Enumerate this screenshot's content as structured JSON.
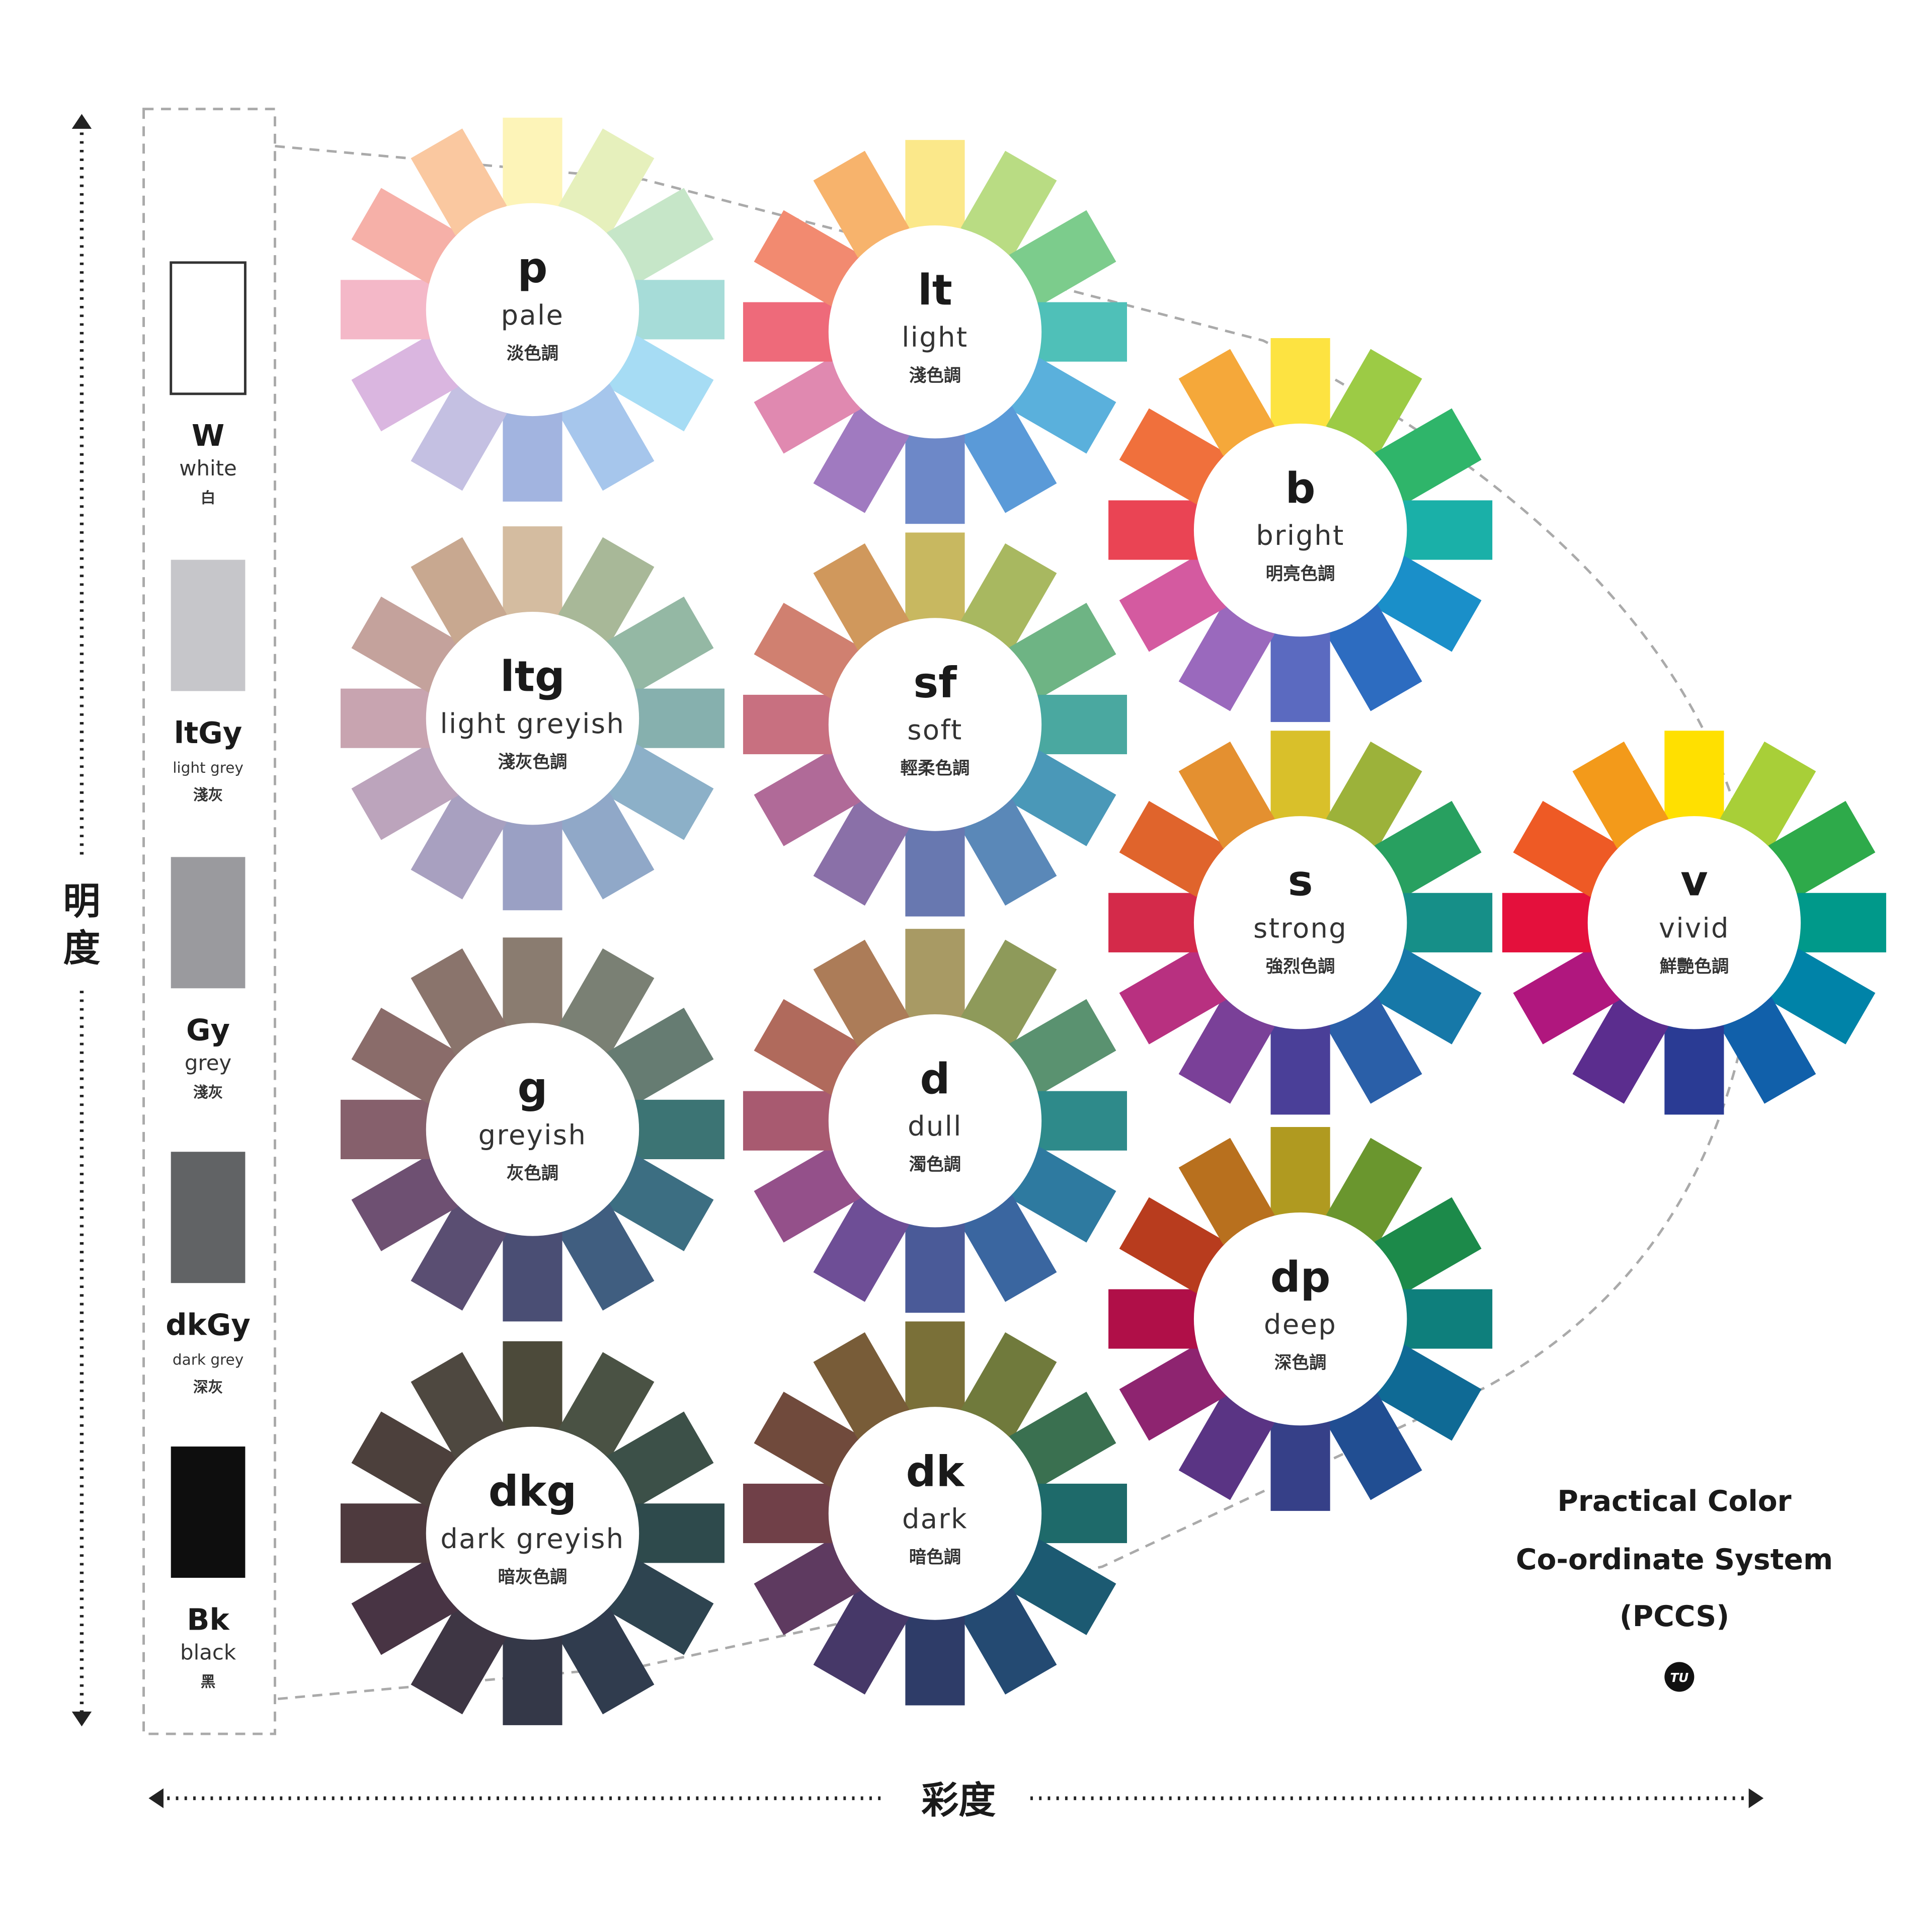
{
  "axes": {
    "vertical_label": "明度",
    "horizontal_label": "彩度"
  },
  "title": {
    "line1": "Practical Color",
    "line2": "Co-ordinate System",
    "line3": "(PCCS)",
    "logo_text": "TU"
  },
  "greys": [
    {
      "abbr": "W",
      "name": "white",
      "zh": "白",
      "color": "#ffffff"
    },
    {
      "abbr": "ltGy",
      "name": "light grey",
      "zh": "淺灰",
      "color": "#c6c6ca"
    },
    {
      "abbr": "Gy",
      "name": "grey",
      "zh": "淺灰",
      "color": "#9a9a9e"
    },
    {
      "abbr": "dkGy",
      "name": "dark grey",
      "zh": "深灰",
      "color": "#616365"
    },
    {
      "abbr": "Bk",
      "name": "black",
      "zh": "黑",
      "color": "#0e0e0e"
    }
  ],
  "tones": [
    {
      "abbr": "p",
      "name": "pale",
      "zh": "淡色調",
      "colors": [
        "#fdf4b8",
        "#e6f0bc",
        "#c6e6c8",
        "#a6dcd8",
        "#a6dcf4",
        "#a6c6ec",
        "#a2b4e0",
        "#c4c0e2",
        "#dab6e0",
        "#f4b8c8",
        "#f6b0a8",
        "#fac8a0"
      ]
    },
    {
      "abbr": "lt",
      "name": "light",
      "zh": "淺色調",
      "colors": [
        "#fbe88a",
        "#b9dc83",
        "#7ccc8c",
        "#4fc0b8",
        "#5ab0dc",
        "#5a9ad8",
        "#6d88c8",
        "#a07ac0",
        "#e089b0",
        "#ee6a7a",
        "#f28a70",
        "#f7b36c"
      ]
    },
    {
      "abbr": "b",
      "name": "bright",
      "zh": "明亮色調",
      "colors": [
        "#fde341",
        "#9ccb45",
        "#2fb56a",
        "#1ab0a8",
        "#1a8fc9",
        "#2d6cc0",
        "#5b6ac0",
        "#9a69bd",
        "#d45aa0",
        "#ea4454",
        "#f0703c",
        "#f5a83a"
      ]
    },
    {
      "abbr": "ltg",
      "name": "light greyish",
      "zh": "淺灰色調",
      "colors": [
        "#d4bca0",
        "#a8b898",
        "#94b8a4",
        "#86b0ae",
        "#8cb0c8",
        "#90a8c8",
        "#9aa0c4",
        "#a8a0c0",
        "#bca4bc",
        "#c8a4b0",
        "#c4a29c",
        "#c8a890"
      ]
    },
    {
      "abbr": "sf",
      "name": "soft",
      "zh": "輕柔色調",
      "colors": [
        "#c8b860",
        "#a8b860",
        "#6eb484",
        "#4aa8a0",
        "#4a98b8",
        "#5a88b8",
        "#6878b0",
        "#8a70a8",
        "#b06a98",
        "#c87080",
        "#d08070",
        "#d0985c"
      ]
    },
    {
      "abbr": "s",
      "name": "strong",
      "zh": "強烈色調",
      "colors": [
        "#d9c02a",
        "#9cb23a",
        "#28a060",
        "#168f88",
        "#1678a8",
        "#2a5fa8",
        "#4a3f98",
        "#7a4098",
        "#b83080",
        "#d42a4a",
        "#e0642c",
        "#e49030"
      ]
    },
    {
      "abbr": "v",
      "name": "vivid",
      "zh": "鮮艷色調",
      "colors": [
        "#ffe000",
        "#a8cf38",
        "#2eaa4a",
        "#00998a",
        "#0083a8",
        "#1160aa",
        "#2a3b94",
        "#5b2d8e",
        "#b0177e",
        "#e4103c",
        "#ee5a25",
        "#f39a1a"
      ]
    },
    {
      "abbr": "g",
      "name": "greyish",
      "zh": "灰色調",
      "colors": [
        "#8a7c70",
        "#7a8074",
        "#667c72",
        "#3c7474",
        "#3c6e82",
        "#405e80",
        "#4a4e74",
        "#5a4e72",
        "#6e5072",
        "#86606c",
        "#8a6c6a",
        "#8a746c"
      ]
    },
    {
      "abbr": "d",
      "name": "dull",
      "zh": "濁色調",
      "colors": [
        "#a89a64",
        "#8e9a5a",
        "#5a9270",
        "#2e8a8a",
        "#2e7aa0",
        "#3a66a0",
        "#4a5a98",
        "#6e4e96",
        "#94508a",
        "#a85a70",
        "#b06a5c",
        "#ac7c58"
      ]
    },
    {
      "abbr": "dp",
      "name": "deep",
      "zh": "深色調",
      "colors": [
        "#b09a20",
        "#6a962e",
        "#1c8a4a",
        "#0e7f7c",
        "#0f6a95",
        "#214e92",
        "#364088",
        "#5a3484",
        "#8e2470",
        "#b00f48",
        "#b83c1e",
        "#b8701e"
      ]
    },
    {
      "abbr": "dkg",
      "name": "dark greyish",
      "zh": "暗灰色調",
      "colors": [
        "#4c4a3a",
        "#4a5244",
        "#3c5048",
        "#2e4a4c",
        "#2e4450",
        "#303c4e",
        "#343848",
        "#3e3644",
        "#483444",
        "#4e3a3e",
        "#4c403c",
        "#4e4840"
      ]
    },
    {
      "abbr": "dk",
      "name": "dark",
      "zh": "暗色調",
      "colors": [
        "#7a7038",
        "#707a3c",
        "#3a7050",
        "#1e6a6a",
        "#1c5a72",
        "#244a72",
        "#2e3c68",
        "#463868",
        "#5e3a60",
        "#704048",
        "#704a3c",
        "#785c38"
      ]
    }
  ]
}
